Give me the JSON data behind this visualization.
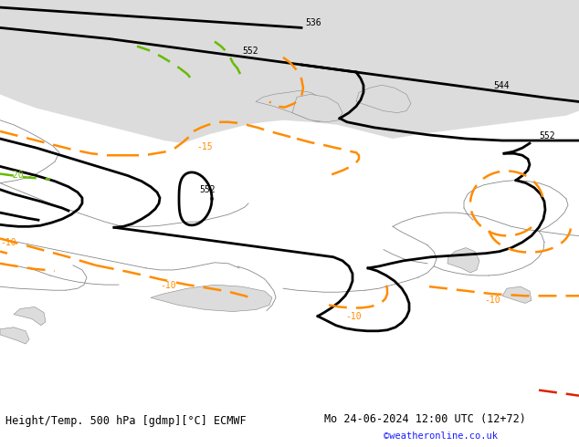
{
  "title_left": "Height/Temp. 500 hPa [gdmp][°C] ECMWF",
  "title_right": "Mo 24-06-2024 12:00 UTC (12+72)",
  "copyright": "©weatheronline.co.uk",
  "bg_land": "#b5e085",
  "bg_sea": "#d0d0d0",
  "bg_arctic": "#dcdcdc",
  "border_color": "#888888",
  "black": "#000000",
  "orange": "#ff8c00",
  "green_dashed": "#66bb00",
  "red_dashed": "#dd2200",
  "copyright_color": "#1a1aff",
  "lw_contour": 2.0,
  "lw_temp": 1.8,
  "lw_border": 0.6,
  "fig_width": 6.34,
  "fig_height": 4.9,
  "dpi": 100
}
